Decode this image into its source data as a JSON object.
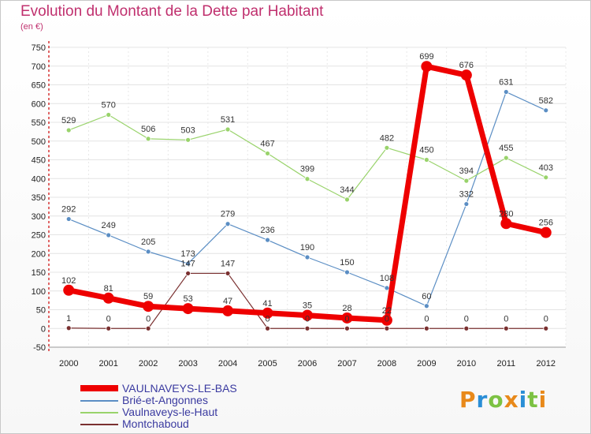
{
  "title": "Evolution du Montant de la Dette par Habitant",
  "subtitle": "(en €)",
  "logo": {
    "text": "Proxiti",
    "colors": [
      "#e8891a",
      "#2a8ed6",
      "#7cc243",
      "#e8891a",
      "#2a8ed6",
      "#7cc243",
      "#e8891a"
    ]
  },
  "chart_data": {
    "type": "line",
    "title": "Evolution du Montant de la Dette par Habitant",
    "subtitle": "(en €)",
    "xlabel": "",
    "ylabel": "",
    "x": [
      "2000",
      "2001",
      "2002",
      "2003",
      "2004",
      "2005",
      "2006",
      "2007",
      "2008",
      "2009",
      "2010",
      "2011",
      "2012"
    ],
    "ylim": [
      -50,
      750
    ],
    "yticks": [
      -50,
      0,
      50,
      100,
      150,
      200,
      250,
      300,
      350,
      400,
      450,
      500,
      550,
      600,
      650,
      700,
      750
    ],
    "grid": true,
    "legend_position": "bottom-left",
    "series": [
      {
        "name": "VAULNAVEYS-LE-BAS",
        "color": "#ee0000",
        "width": 7,
        "values": [
          102,
          81,
          59,
          53,
          47,
          41,
          35,
          28,
          22,
          699,
          676,
          280,
          256
        ],
        "labels": [
          "102",
          "81",
          "59",
          "53",
          "47",
          "41",
          "35",
          "28",
          "22",
          "699",
          "676",
          "280",
          "256"
        ]
      },
      {
        "name": "Brié-et-Angonnes",
        "color": "#5b8ec4",
        "width": 1.2,
        "values": [
          292,
          249,
          205,
          173,
          279,
          236,
          190,
          150,
          108,
          60,
          332,
          631,
          582
        ],
        "labels": [
          "292",
          "249",
          "205",
          "173",
          "279",
          "236",
          "190",
          "150",
          "108",
          "60",
          "332",
          "631",
          "582"
        ]
      },
      {
        "name": "Vaulnaveys-le-Haut",
        "color": "#99d36b",
        "width": 1.2,
        "values": [
          529,
          570,
          506,
          503,
          531,
          467,
          399,
          344,
          482,
          450,
          394,
          455,
          403
        ],
        "labels": [
          "529",
          "570",
          "506",
          "503",
          "531",
          "467",
          "399",
          "344",
          "482",
          "450",
          "394",
          "455",
          "403"
        ]
      },
      {
        "name": "Montchaboud",
        "color": "#7a3030",
        "width": 1.2,
        "values": [
          1,
          0,
          0,
          147,
          147,
          0,
          0,
          0,
          0,
          0,
          0,
          0,
          0
        ],
        "labels": [
          "1",
          "0",
          "0",
          "147",
          "147",
          "0",
          "0",
          "0",
          "0",
          "0",
          "0",
          "0",
          "0"
        ]
      }
    ]
  }
}
